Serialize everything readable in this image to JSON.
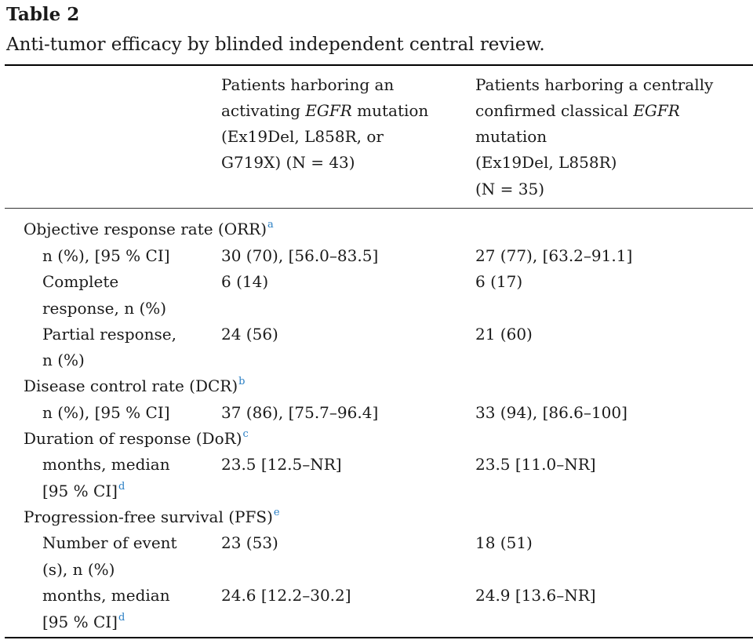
{
  "table_label": "Table 2",
  "caption": "Anti-tumor efficacy by blinded independent central review.",
  "columns": {
    "col1": {
      "l1": "Patients harboring an",
      "l2a": "activating ",
      "l2b": "EGFR",
      "l2c": " mutation",
      "l3": "(Ex19Del, L858R, or",
      "l4": "G719X) (N = 43)"
    },
    "col2": {
      "l1": "Patients harboring a centrally",
      "l2a": "confirmed classical ",
      "l2b": "EGFR",
      "l3": "mutation",
      "l4": "(Ex19Del, L858R)",
      "l5": "(N = 35)"
    }
  },
  "sections": {
    "orr": {
      "label": "Objective response rate (ORR)",
      "sup": "a",
      "rows": [
        {
          "label_lines": [
            "n (%), [95 % CI]"
          ],
          "col1": "30 (70), [56.0–83.5]",
          "col2": "27 (77), [63.2–91.1]"
        },
        {
          "label_lines": [
            "Complete",
            "response, n (%)"
          ],
          "col1": "6 (14)",
          "col2": "6 (17)"
        },
        {
          "label_lines": [
            "Partial response,",
            "n (%)"
          ],
          "col1": "24 (56)",
          "col2": "21 (60)"
        }
      ]
    },
    "dcr": {
      "label": "Disease control rate (DCR)",
      "sup": "b",
      "rows": [
        {
          "label_lines": [
            "n (%), [95 % CI]"
          ],
          "col1": "37 (86), [75.7–96.4]",
          "col2": "33 (94), [86.6–100]"
        }
      ]
    },
    "dor": {
      "label": "Duration of response (DoR)",
      "sup": "c",
      "rows": [
        {
          "label_lines": [
            "months, median",
            "[95 % CI]"
          ],
          "label_sup": "d",
          "col1": "23.5 [12.5–NR]",
          "col2": "23.5 [11.0–NR]"
        }
      ]
    },
    "pfs": {
      "label": "Progression-free survival (PFS)",
      "sup": "e",
      "rows": [
        {
          "label_lines": [
            "Number of event",
            "(s), n (%)"
          ],
          "col1": "23 (53)",
          "col2": "18 (51)"
        },
        {
          "label_lines": [
            "months, median",
            "[95 % CI]"
          ],
          "label_sup": "d",
          "col1": "24.6 [12.2–30.2]",
          "col2": "24.9 [13.6–NR]"
        }
      ]
    }
  }
}
